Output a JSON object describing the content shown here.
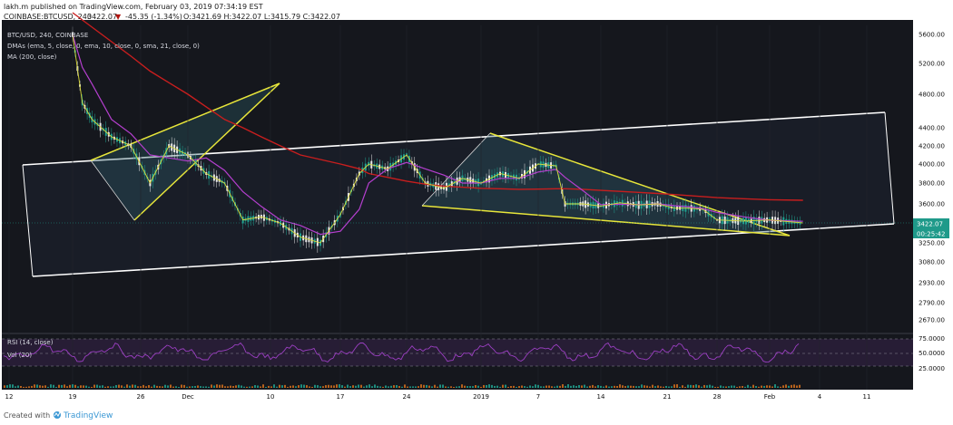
{
  "header": {
    "line1": "lakh.m published on TradingView.com, February 03, 2019 07:34:19 EST",
    "line2_prefix": "COINBASE:BTCUSD, 240",
    "line2_price": "3422.07",
    "line2_change": "-45.35 (-1.34%)",
    "line2_ohlc": "O:3421.69 H:3422.07 L:3415.79 C:3422.07"
  },
  "legend": {
    "symbol": "BTC/USD, 240, COINBASE",
    "dmas": "DMAs (ema, 5, close, 0, ema, 10, close, 0, sma, 21, close, 0)",
    "ma": "MA (200, close)"
  },
  "rsi_panel": {
    "label": "RSI (14, close)",
    "vol": "Vol (20)",
    "ticks": [
      "75.0000",
      "50.0000",
      "25.0000"
    ]
  },
  "footer": {
    "created_with": "Created with",
    "brand": "TradingView"
  },
  "colors": {
    "background": "#15171d",
    "price_line": "#e6e6e6",
    "ma200": "#c81e1e",
    "ema_short": "#d8d83a",
    "sma21": "#b53fcf",
    "channel": "#ffffff",
    "pattern": "#e8e63a",
    "rsi_line": "#9b3fc2",
    "rsi_band": "#2a1e3a",
    "price_tag": "#1f9a8a",
    "down": "#b0140f"
  },
  "chart_data": {
    "type": "line",
    "title": "BTC/USD, 240, COINBASE",
    "x_tick_labels": [
      "12",
      "19",
      "26",
      "Dec",
      "10",
      "17",
      "24",
      "2019",
      "7",
      "14",
      "21",
      "28",
      "Feb",
      "4",
      "11"
    ],
    "y_tick_labels": [
      "5600.00",
      "5200.00",
      "4800.00",
      "4400.00",
      "4200.00",
      "4000.00",
      "3800.00",
      "3600.00",
      "3422.07",
      "3250.00",
      "3080.00",
      "2930.00",
      "2790.00",
      "2670.00"
    ],
    "ylim": [
      2600,
      5900
    ],
    "last_price": 3422.07,
    "countdown": "00:25:42",
    "x": [
      "2018-11-19",
      "2018-11-20",
      "2018-11-21",
      "2018-11-23",
      "2018-11-25",
      "2018-11-27",
      "2018-11-29",
      "2018-12-01",
      "2018-12-03",
      "2018-12-05",
      "2018-12-07",
      "2018-12-09",
      "2018-12-11",
      "2018-12-13",
      "2018-12-15",
      "2018-12-17",
      "2018-12-19",
      "2018-12-20",
      "2018-12-22",
      "2018-12-24",
      "2018-12-26",
      "2018-12-28",
      "2018-12-30",
      "2019-01-01",
      "2019-01-03",
      "2019-01-05",
      "2019-01-07",
      "2019-01-09",
      "2019-01-10",
      "2019-01-12",
      "2019-01-14",
      "2019-01-16",
      "2019-01-18",
      "2019-01-20",
      "2019-01-22",
      "2019-01-24",
      "2019-01-26",
      "2019-01-28",
      "2019-01-30",
      "2019-02-01",
      "2019-02-03"
    ],
    "series": [
      {
        "name": "COINBASE:BTCUSD",
        "values": [
          5600,
          4700,
          4500,
          4300,
          4200,
          3800,
          4200,
          4100,
          3900,
          3800,
          3450,
          3480,
          3420,
          3300,
          3250,
          3500,
          3900,
          4000,
          3950,
          4100,
          3800,
          3750,
          3850,
          3800,
          3900,
          3850,
          4000,
          3980,
          3600,
          3600,
          3580,
          3610,
          3590,
          3600,
          3560,
          3560,
          3550,
          3450,
          3440,
          3450,
          3422
        ]
      },
      {
        "name": "MA (200, close)",
        "values": [
          5900,
          5800,
          5700,
          5500,
          5300,
          5100,
          4950,
          4800,
          4650,
          4500,
          4400,
          4300,
          4200,
          4100,
          4050,
          4000,
          3950,
          3900,
          3860,
          3820,
          3790,
          3770,
          3760,
          3750,
          3745,
          3740,
          3742,
          3745,
          3745,
          3740,
          3730,
          3720,
          3710,
          3700,
          3690,
          3680,
          3670,
          3660,
          3650,
          3640,
          3635
        ]
      }
    ]
  }
}
